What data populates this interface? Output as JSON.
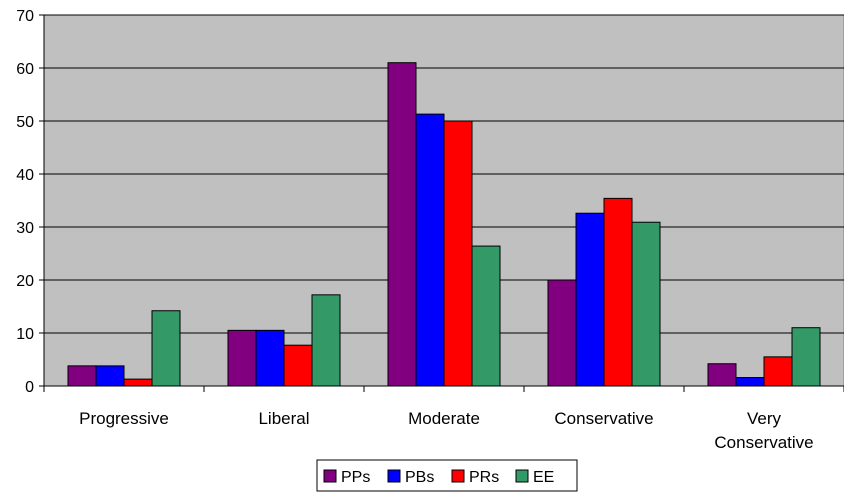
{
  "chart_data": {
    "type": "bar",
    "categories": [
      [
        "Progressive"
      ],
      [
        "Liberal"
      ],
      [
        "Moderate"
      ],
      [
        "Conservative"
      ],
      [
        "Very",
        "Conservative"
      ]
    ],
    "series": [
      {
        "name": "PPs",
        "color": "#800080",
        "values": [
          3.8,
          10.5,
          61.0,
          20.0,
          4.2
        ]
      },
      {
        "name": "PBs",
        "color": "#0000ff",
        "values": [
          3.8,
          10.5,
          51.3,
          32.6,
          1.6
        ]
      },
      {
        "name": "PRs",
        "color": "#ff0000",
        "values": [
          1.3,
          7.7,
          50.0,
          35.4,
          5.5
        ]
      },
      {
        "name": "EE",
        "color": "#339966",
        "values": [
          14.2,
          17.2,
          26.4,
          30.9,
          11.0
        ]
      }
    ],
    "yticks": [
      "0",
      "10",
      "20",
      "30",
      "40",
      "50",
      "60",
      "70"
    ],
    "ylim": [
      0,
      70
    ],
    "grid": true,
    "plot_background": "#c0c0c0",
    "legend_position": "bottom"
  }
}
